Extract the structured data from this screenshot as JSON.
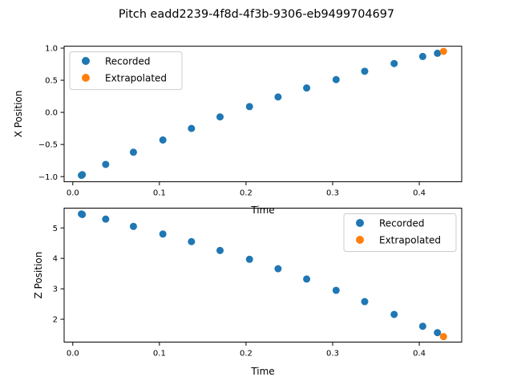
{
  "figure": {
    "title": "Pitch eadd2239-4f8d-4f3b-9306-eb9499704697"
  },
  "colors": {
    "recorded": "#1f77b4",
    "extrapolated": "#ff7f0e"
  },
  "chart_data": [
    {
      "type": "scatter",
      "xlabel": "Time",
      "ylabel": "X Position",
      "xlim": [
        -0.01,
        0.449
      ],
      "ylim": [
        -1.08,
        1.03
      ],
      "xticks": [
        0.0,
        0.1,
        0.2,
        0.3,
        0.4
      ],
      "xtick_labels": [
        "0.0",
        "0.1",
        "0.2",
        "0.3",
        "0.4"
      ],
      "yticks": [
        -1.0,
        -0.5,
        0.0,
        0.5,
        1.0
      ],
      "ytick_labels": [
        "−1.0",
        "−0.5",
        "0.0",
        "0.5",
        "1.0"
      ],
      "legend_position": "top-left",
      "series": [
        {
          "name": "Recorded",
          "x": [
            0.01,
            0.011,
            0.038,
            0.07,
            0.104,
            0.137,
            0.17,
            0.204,
            0.237,
            0.27,
            0.304,
            0.337,
            0.371,
            0.404,
            0.421
          ],
          "y": [
            -0.98,
            -0.97,
            -0.81,
            -0.62,
            -0.43,
            -0.25,
            -0.07,
            0.09,
            0.24,
            0.38,
            0.51,
            0.64,
            0.76,
            0.87,
            0.92
          ]
        },
        {
          "name": "Extrapolated",
          "x": [
            0.428
          ],
          "y": [
            0.95
          ]
        }
      ]
    },
    {
      "type": "scatter",
      "xlabel": "Time",
      "ylabel": "Z Position",
      "xlim": [
        -0.01,
        0.449
      ],
      "ylim": [
        1.25,
        5.65
      ],
      "xticks": [
        0.0,
        0.1,
        0.2,
        0.3,
        0.4
      ],
      "xtick_labels": [
        "0.0",
        "0.1",
        "0.2",
        "0.3",
        "0.4"
      ],
      "yticks": [
        2,
        3,
        4,
        5
      ],
      "ytick_labels": [
        "2",
        "3",
        "4",
        "5"
      ],
      "legend_position": "top-right",
      "series": [
        {
          "name": "Recorded",
          "x": [
            0.01,
            0.011,
            0.038,
            0.07,
            0.104,
            0.137,
            0.17,
            0.204,
            0.237,
            0.27,
            0.304,
            0.337,
            0.371,
            0.404,
            0.421
          ],
          "y": [
            5.46,
            5.44,
            5.29,
            5.05,
            4.8,
            4.55,
            4.26,
            3.97,
            3.66,
            3.32,
            2.95,
            2.58,
            2.16,
            1.77,
            1.56
          ]
        },
        {
          "name": "Extrapolated",
          "x": [
            0.428
          ],
          "y": [
            1.43
          ]
        }
      ]
    }
  ]
}
